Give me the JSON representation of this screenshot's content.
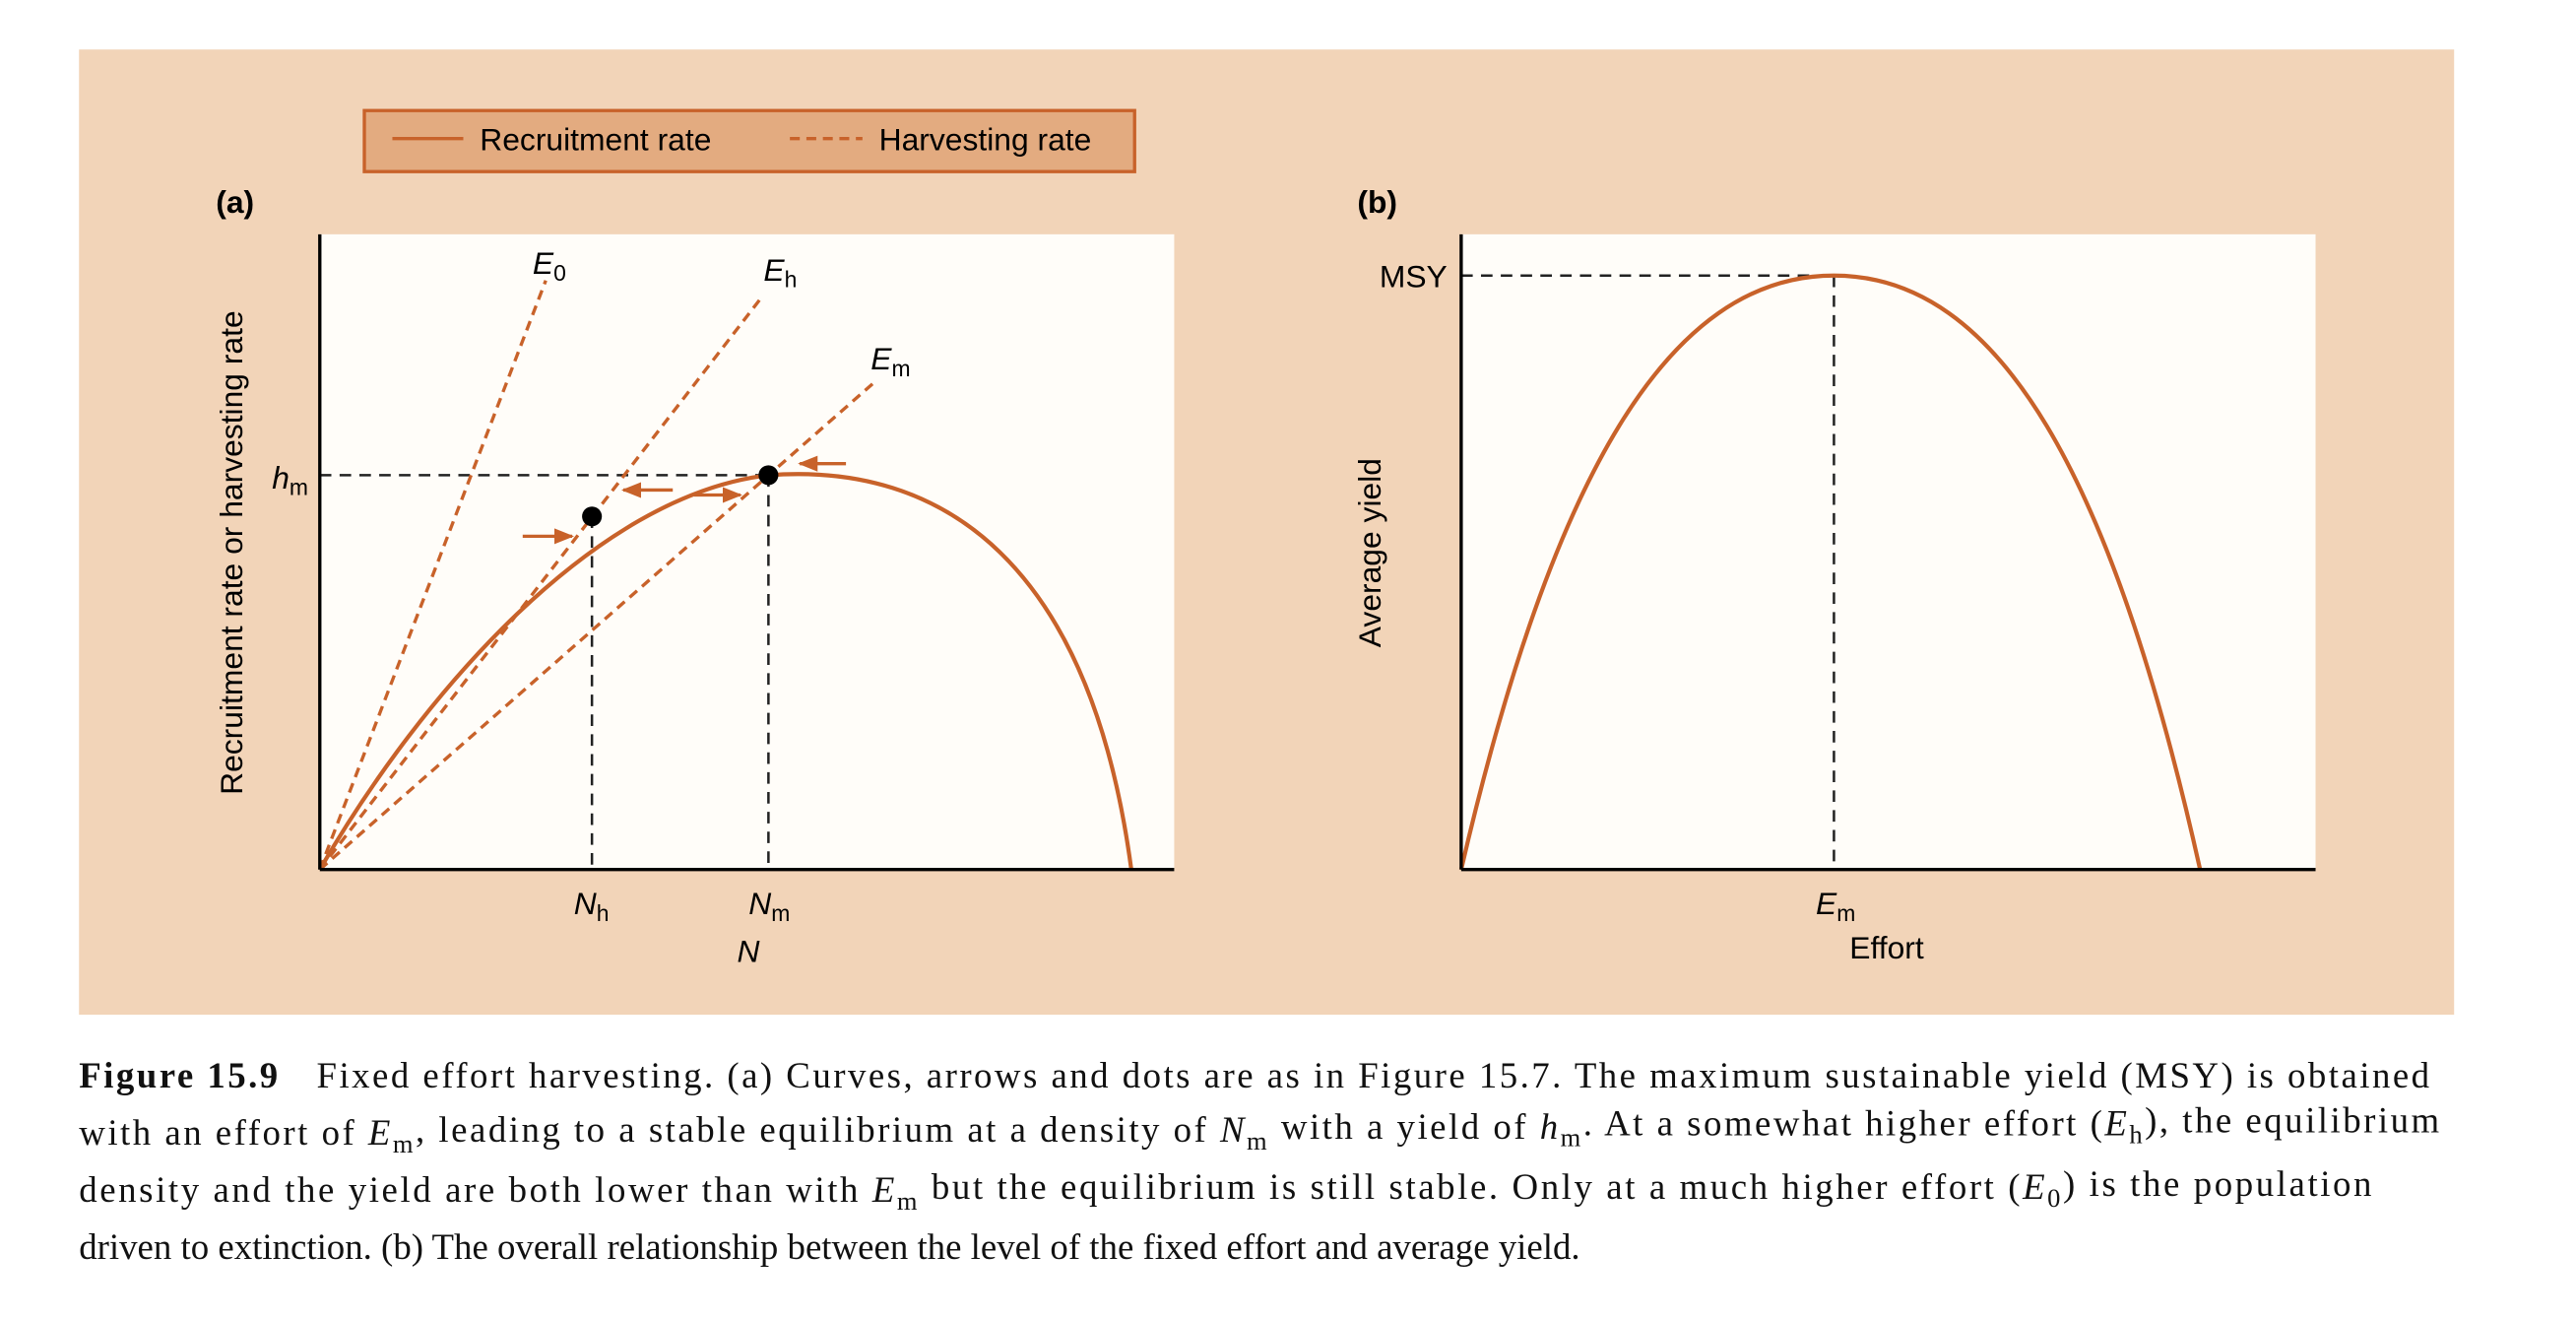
{
  "legend": {
    "items": [
      {
        "label": "Recruitment rate"
      },
      {
        "label": "Harvesting rate"
      }
    ]
  },
  "panel_a": {
    "tag": "(a)",
    "y_axis_label": "Recruitment rate or harvesting rate",
    "x_axis_label": {
      "i": "N"
    },
    "line_labels": [
      {
        "i": "E",
        "sub": "0"
      },
      {
        "i": "E",
        "sub": "h"
      },
      {
        "i": "E",
        "sub": "m"
      }
    ],
    "y_marker": {
      "i": "h",
      "sub": "m"
    },
    "x_markers": [
      {
        "i": "N",
        "sub": "h"
      },
      {
        "i": "N",
        "sub": "m"
      }
    ]
  },
  "panel_b": {
    "tag": "(b)",
    "y_axis_label": "Average yield",
    "x_axis_label": "Effort",
    "y_marker": "MSY",
    "x_marker": {
      "i": "E",
      "sub": "m"
    }
  },
  "caption": {
    "lines": [
      [
        {
          "b": "Figure 15.9"
        },
        "Fixed effort harvesting. (a) Curves, arrows and dots are as in Figure 15.7. The maximum sustainable yield (MSY) is obtained"
      ],
      [
        "with an effort of ",
        {
          "i": "E",
          "sub": "m"
        },
        ", leading to a stable equilibrium at a density of ",
        {
          "i": "N",
          "sub": "m"
        },
        " with a yield of ",
        {
          "i": "h",
          "sub": "m"
        },
        ". At a somewhat higher effort (",
        {
          "i": "E",
          "sub": "h"
        },
        "), the equilibrium"
      ],
      [
        "density and the yield are both lower than with ",
        {
          "i": "E",
          "sub": "m"
        },
        " but the equilibrium is still stable. Only at a much higher effort (",
        {
          "i": "E",
          "sub": "0"
        },
        ") is the population"
      ],
      [
        "driven to extinction. (b) The overall relationship between the level of the fixed effort and average yield."
      ]
    ]
  }
}
